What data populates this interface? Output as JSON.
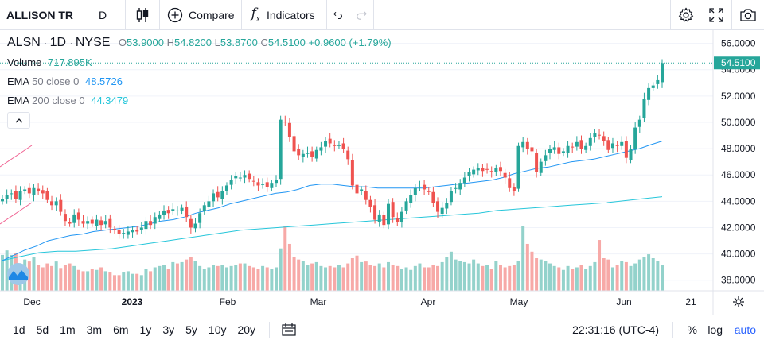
{
  "toolbar": {
    "symbol": "ALLISON TR",
    "interval": "D",
    "compare_label": "Compare",
    "indicators_label": "Indicators"
  },
  "legend": {
    "ticker": "ALSN",
    "interval": "1D",
    "exchange": "NYSE",
    "o_label": "O",
    "o_value": "53.9000",
    "h_label": "H",
    "h_value": "54.8200",
    "l_label": "L",
    "l_value": "53.8700",
    "c_label": "C",
    "c_value": "54.5100",
    "change": "+0.9600 (+1.79%)",
    "volume_label": "Volume",
    "volume_value": "717.895K",
    "ema50_label": "EMA",
    "ema50_params": "50 close 0",
    "ema50_value": "48.5726",
    "ema200_label": "EMA",
    "ema200_params": "200 close 0",
    "ema200_value": "44.3479"
  },
  "bottom": {
    "ranges": [
      "1d",
      "5d",
      "1m",
      "3m",
      "6m",
      "1y",
      "3y",
      "5y",
      "10y",
      "20y"
    ],
    "time": "22:31:16 (UTC-4)",
    "percent": "%",
    "log": "log",
    "auto": "auto"
  },
  "colors": {
    "up": "#26a69a",
    "down": "#ef5350",
    "up_vol": "#93d2cb",
    "down_vol": "#f7a9a7",
    "ema50": "#2196f3",
    "ema200": "#26c6da",
    "last_price": "#26a69a",
    "accent": "#2962ff"
  },
  "chart_data": {
    "type": "candlestick",
    "price_axis": {
      "ticks": [
        "56.0000",
        "54.0000",
        "52.0000",
        "50.0000",
        "48.0000",
        "46.0000",
        "44.0000",
        "42.0000",
        "40.0000",
        "38.0000"
      ],
      "range": [
        37.2,
        57.0
      ]
    },
    "time_axis": [
      "Dec",
      "2023",
      "Feb",
      "Mar",
      "Apr",
      "May",
      "Jun",
      "21"
    ],
    "last_price": "54.5100",
    "closes": [
      44.2,
      44.5,
      44.6,
      44.2,
      44.8,
      44.9,
      44.6,
      45.0,
      44.8,
      44.6,
      44.1,
      43.7,
      44.0,
      43.2,
      42.5,
      42.3,
      43.0,
      42.6,
      42.3,
      42.5,
      42.3,
      42.6,
      42.2,
      42.5,
      42.0,
      41.8,
      41.5,
      41.6,
      41.7,
      41.8,
      41.7,
      42.0,
      42.5,
      42.2,
      42.8,
      43.0,
      43.3,
      43.1,
      43.4,
      43.3,
      43.5,
      42.8,
      42.0,
      42.3,
      43.1,
      43.7,
      44.0,
      44.6,
      44.3,
      44.8,
      45.2,
      45.6,
      45.9,
      45.8,
      46.0,
      45.7,
      45.5,
      45.2,
      45.3,
      45.1,
      45.4,
      45.6,
      50.2,
      50.0,
      48.9,
      47.8,
      47.5,
      47.6,
      47.7,
      47.4,
      47.9,
      48.1,
      48.6,
      48.4,
      48.2,
      48.3,
      48.0,
      47.2,
      45.2,
      44.6,
      44.9,
      44.1,
      43.6,
      42.6,
      43.0,
      42.2,
      43.8,
      42.8,
      42.4,
      43.2,
      44.0,
      44.5,
      45.0,
      45.1,
      44.9,
      44.7,
      43.9,
      43.2,
      43.5,
      43.9,
      44.8,
      45.0,
      45.4,
      45.8,
      46.2,
      46.4,
      46.5,
      46.3,
      46.4,
      46.2,
      46.5,
      46.3,
      45.8,
      45.0,
      44.8,
      48.2,
      48.5,
      48.0,
      47.8,
      46.2,
      47.0,
      47.5,
      48.0,
      48.1,
      47.6,
      47.8,
      48.2,
      48.1,
      48.5,
      48.0,
      48.2,
      48.8,
      49.2,
      49.0,
      48.6,
      47.9,
      48.4,
      48.2,
      48.5,
      47.3,
      48.0,
      49.6,
      50.2,
      51.8,
      52.6,
      52.8,
      53.2,
      54.5
    ],
    "ema50": [
      39.5,
      39.9,
      40.3,
      40.6,
      41.0,
      41.2,
      41.4,
      41.5,
      41.7,
      41.8,
      41.9,
      42.0,
      42.1,
      42.3,
      42.5,
      42.6,
      42.8,
      43.1,
      43.3,
      43.5,
      43.8,
      44.0,
      44.2,
      44.4,
      44.6,
      44.7,
      44.9,
      45.2,
      45.3,
      45.3,
      45.2,
      45.1,
      45.1,
      45.0,
      45.0,
      45.0,
      45.0,
      45.0,
      45.1,
      45.2,
      45.3,
      45.4,
      45.5,
      45.6,
      45.8,
      46.1,
      46.3,
      46.5,
      46.6,
      46.8,
      47.0,
      47.1,
      47.2,
      47.4,
      47.6,
      47.8,
      48.0,
      48.3,
      48.57
    ],
    "ema200": [
      39.5,
      39.8,
      40.1,
      40.2,
      40.2,
      40.3,
      40.4,
      40.6,
      40.8,
      41.0,
      41.2,
      41.4,
      41.6,
      41.8,
      41.9,
      42.0,
      42.1,
      42.2,
      42.3,
      42.4,
      42.5,
      42.6,
      42.7,
      42.8,
      42.9,
      43.0,
      43.1,
      43.3,
      43.4,
      43.5,
      43.6,
      43.7,
      43.8,
      43.9,
      44.05,
      44.2,
      44.35
    ],
    "volumes": [
      0.55,
      0.62,
      0.55,
      0.58,
      0.4,
      0.48,
      0.45,
      0.52,
      0.4,
      0.36,
      0.42,
      0.38,
      0.45,
      0.35,
      0.4,
      0.42,
      0.38,
      0.32,
      0.3,
      0.3,
      0.34,
      0.32,
      0.36,
      0.3,
      0.28,
      0.24,
      0.24,
      0.28,
      0.3,
      0.26,
      0.26,
      0.24,
      0.34,
      0.3,
      0.36,
      0.38,
      0.4,
      0.34,
      0.44,
      0.42,
      0.44,
      0.48,
      0.52,
      0.46,
      0.38,
      0.34,
      0.36,
      0.4,
      0.38,
      0.4,
      0.36,
      0.38,
      0.4,
      0.42,
      0.42,
      0.38,
      0.36,
      0.34,
      0.38,
      0.36,
      0.34,
      0.36,
      0.65,
      1.0,
      0.72,
      0.52,
      0.48,
      0.46,
      0.4,
      0.42,
      0.44,
      0.38,
      0.36,
      0.38,
      0.36,
      0.4,
      0.36,
      0.42,
      0.5,
      0.54,
      0.44,
      0.45,
      0.4,
      0.38,
      0.42,
      0.36,
      0.44,
      0.4,
      0.38,
      0.34,
      0.36,
      0.32,
      0.38,
      0.42,
      0.36,
      0.36,
      0.4,
      0.38,
      0.44,
      0.52,
      0.6,
      0.48,
      0.46,
      0.44,
      0.42,
      0.48,
      0.42,
      0.38,
      0.4,
      0.34,
      0.46,
      0.4,
      0.36,
      0.38,
      0.4,
      0.46,
      1.0,
      0.72,
      0.6,
      0.5,
      0.48,
      0.46,
      0.42,
      0.38,
      0.36,
      0.32,
      0.38,
      0.34,
      0.36,
      0.4,
      0.34,
      0.38,
      0.44,
      0.78,
      0.5,
      0.48,
      0.36,
      0.4,
      0.46,
      0.44,
      0.38,
      0.42,
      0.48,
      0.52,
      0.56,
      0.5,
      0.46,
      0.4
    ]
  }
}
